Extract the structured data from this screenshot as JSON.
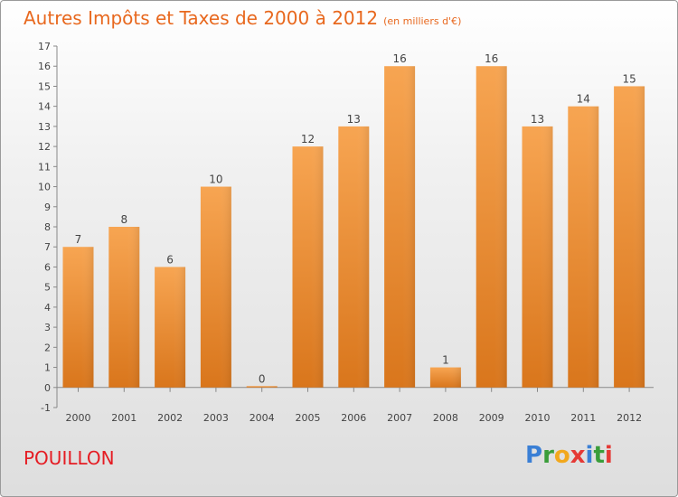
{
  "title": "Autres Impôts et Taxes de 2000 à 2012",
  "subtitle": "(en milliers d'€)",
  "footer_left": "POUILLON",
  "logo": {
    "letters": [
      "P",
      "r",
      "o",
      "x",
      "i",
      "t",
      "i"
    ],
    "colors": [
      "#3a7fd5",
      "#3a9d3a",
      "#f2a81d",
      "#e53935",
      "#3a7fd5",
      "#3a9d3a",
      "#e53935"
    ]
  },
  "chart_data": {
    "type": "bar",
    "categories": [
      "2000",
      "2001",
      "2002",
      "2003",
      "2004",
      "2005",
      "2006",
      "2007",
      "2008",
      "2009",
      "2010",
      "2011",
      "2012"
    ],
    "values": [
      7,
      8,
      6,
      10,
      0,
      12,
      13,
      16,
      1,
      16,
      13,
      14,
      15
    ],
    "data_labels": [
      "7",
      "8",
      "6",
      "10",
      "0",
      "12",
      "13",
      "16",
      "1",
      "16",
      "13",
      "14",
      "15"
    ],
    "yticks": [
      "-1",
      "0",
      "1",
      "2",
      "3",
      "4",
      "5",
      "6",
      "7",
      "8",
      "9",
      "10",
      "11",
      "12",
      "13",
      "14",
      "15",
      "16",
      "17"
    ],
    "ylim": [
      -1,
      17
    ],
    "grid": false,
    "legend": "none",
    "bar_color_top": "#f7a552",
    "bar_color_bottom": "#d9761c",
    "label_color": "#e8681e"
  }
}
